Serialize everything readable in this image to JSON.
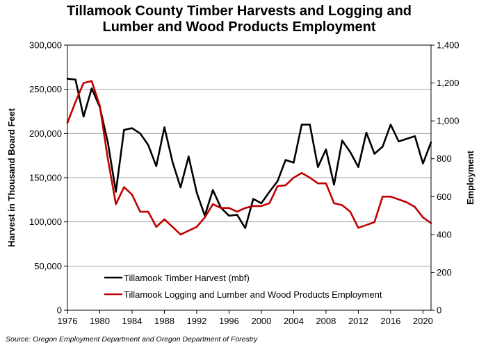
{
  "chart_data": {
    "type": "line",
    "title_line1": "Tillamook County Timber Harvests and Logging and",
    "title_line2": "Lumber and Wood Products Employment",
    "ylabel_left": "Harvest in Thousand Board Feet",
    "ylabel_right": "Employment",
    "source": "Source: Oregon Employment Department and Oregon Department of Forestry",
    "grid": true,
    "legend_position": "bottom-left inside",
    "x": [
      1976,
      1977,
      1978,
      1979,
      1980,
      1981,
      1982,
      1983,
      1984,
      1985,
      1986,
      1987,
      1988,
      1989,
      1990,
      1991,
      1992,
      1993,
      1994,
      1995,
      1996,
      1997,
      1998,
      1999,
      2000,
      2001,
      2002,
      2003,
      2004,
      2005,
      2006,
      2007,
      2008,
      2009,
      2010,
      2011,
      2012,
      2013,
      2014,
      2015,
      2016,
      2017,
      2018,
      2019,
      2020,
      2021
    ],
    "xlim": [
      1976,
      2021
    ],
    "x_ticks": [
      "1976",
      "1980",
      "1984",
      "1988",
      "1992",
      "1996",
      "2000",
      "2004",
      "2008",
      "2012",
      "2016",
      "2020"
    ],
    "x_tick_values": [
      1976,
      1980,
      1984,
      1988,
      1992,
      1996,
      2000,
      2004,
      2008,
      2012,
      2016,
      2020
    ],
    "ylim_left": [
      0,
      300000
    ],
    "y_ticks_left": [
      "0",
      "50,000",
      "100,000",
      "150,000",
      "200,000",
      "250,000",
      "300,000"
    ],
    "y_tick_values_left": [
      0,
      50000,
      100000,
      150000,
      200000,
      250000,
      300000
    ],
    "ylim_right": [
      0,
      1400
    ],
    "y_ticks_right": [
      "0",
      "200",
      "400",
      "600",
      "800",
      "1,000",
      "1,200",
      "1,400"
    ],
    "y_tick_values_right": [
      0,
      200,
      400,
      600,
      800,
      1000,
      1200,
      1400
    ],
    "series": [
      {
        "name": "Tillamook Timber Harvest (mbf)",
        "axis": "left",
        "color": "#000000",
        "values": [
          262000,
          261000,
          219000,
          251000,
          230000,
          190000,
          134000,
          204000,
          206000,
          200000,
          187000,
          163000,
          207000,
          168000,
          139000,
          174000,
          133000,
          107000,
          136000,
          116000,
          107000,
          108000,
          93000,
          126000,
          121000,
          134000,
          146000,
          170000,
          167000,
          210000,
          210000,
          162000,
          182000,
          142000,
          192000,
          179000,
          162000,
          201000,
          177000,
          185000,
          210000,
          191000,
          194000,
          197000,
          166000,
          190000
        ]
      },
      {
        "name": "Tillamook Logging and Lumber and Wood Products Employment",
        "axis": "right",
        "color": "#c00000",
        "values": [
          990,
          1100,
          1200,
          1210,
          1080,
          800,
          560,
          650,
          610,
          520,
          520,
          440,
          480,
          440,
          400,
          420,
          440,
          490,
          560,
          540,
          540,
          520,
          540,
          550,
          550,
          565,
          655,
          660,
          700,
          725,
          700,
          670,
          670,
          565,
          555,
          520,
          435,
          450,
          465,
          600,
          600,
          585,
          570,
          545,
          490,
          460
        ]
      }
    ]
  }
}
